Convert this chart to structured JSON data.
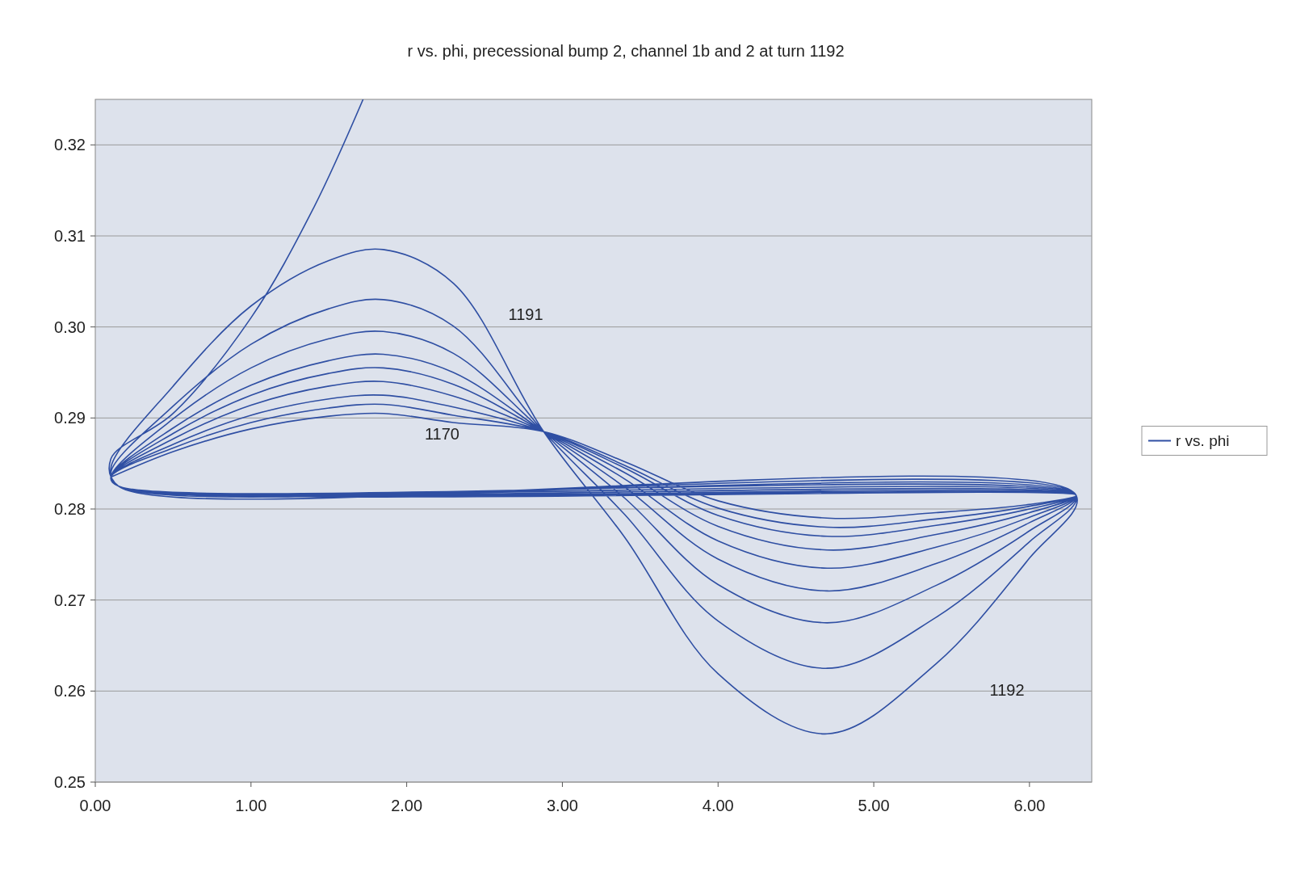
{
  "chart_data": {
    "type": "line",
    "title": "r vs. phi, precessional bump 2, channel 1b and 2 at turn 1192",
    "xlim": [
      0,
      6.4
    ],
    "xticks": [
      {
        "value": 0,
        "label": "0.00"
      },
      {
        "value": 1,
        "label": "1.00"
      },
      {
        "value": 2,
        "label": "2.00"
      },
      {
        "value": 3,
        "label": "3.00"
      },
      {
        "value": 4,
        "label": "4.00"
      },
      {
        "value": 5,
        "label": "5.00"
      },
      {
        "value": 6,
        "label": "6.00"
      }
    ],
    "ylim": [
      0.25,
      0.325
    ],
    "yticks": [
      {
        "value": 0.25,
        "label": "0.25"
      },
      {
        "value": 0.26,
        "label": "0.26"
      },
      {
        "value": 0.27,
        "label": "0.27"
      },
      {
        "value": 0.28,
        "label": "0.28"
      },
      {
        "value": 0.29,
        "label": "0.29"
      },
      {
        "value": 0.3,
        "label": "0.30"
      },
      {
        "value": 0.31,
        "label": "0.31"
      },
      {
        "value": 0.32,
        "label": "0.32"
      }
    ],
    "grid": "y",
    "legend": "right",
    "marker": "none",
    "annotations": [
      "1191",
      "1170",
      "1192"
    ],
    "series": [
      {
        "name": "r vs. phi",
        "color": "#2f4fa3",
        "x": [
          0.1,
          0.5,
          1.0,
          1.5,
          1.85,
          2.3,
          2.88,
          3.4,
          4.0,
          4.7,
          5.4,
          6.0,
          6.3,
          0.15,
          0.1,
          0.5,
          1.0,
          1.5,
          1.85,
          2.3,
          2.88,
          3.4,
          4.0,
          4.7,
          5.4,
          6.0,
          6.3,
          0.15,
          0.1,
          0.5,
          1.0,
          1.5,
          1.85,
          2.3,
          2.88,
          3.4,
          4.0,
          4.7,
          5.4,
          6.0,
          6.3,
          0.15,
          0.1,
          0.5,
          1.0,
          1.5,
          1.85,
          2.3,
          2.88,
          3.4,
          4.0,
          4.7,
          5.4,
          6.0,
          6.3,
          0.15,
          0.1,
          0.5,
          1.0,
          1.5,
          1.85,
          2.3,
          2.88,
          3.4,
          4.0,
          4.7,
          5.4,
          6.0,
          6.3,
          0.15,
          0.1,
          0.5,
          1.0,
          1.5,
          1.85,
          2.3,
          2.88,
          3.4,
          4.0,
          4.7,
          5.4,
          6.0,
          6.3,
          0.15,
          0.1,
          0.5,
          1.0,
          1.5,
          1.85,
          2.3,
          2.88,
          3.4,
          4.0,
          4.7,
          5.4,
          6.0,
          6.3,
          0.15,
          0.1,
          0.5,
          1.0,
          1.5,
          1.85,
          2.3,
          2.88,
          3.4,
          4.0,
          4.7,
          5.4,
          6.0,
          6.3,
          0.15,
          0.1,
          0.5,
          1.0,
          1.5,
          1.85,
          2.3,
          2.88,
          3.4,
          4.0,
          4.7,
          5.4,
          6.0,
          6.3,
          0.15,
          0.1,
          0.5,
          1.0,
          1.4,
          1.72
        ],
        "values": [
          0.2835,
          0.2863,
          0.2888,
          0.2902,
          0.2905,
          0.2895,
          0.2885,
          0.2852,
          0.2809,
          0.279,
          0.2796,
          0.2805,
          0.2815,
          0.2825,
          0.2835,
          0.2867,
          0.2895,
          0.2911,
          0.2915,
          0.2903,
          0.2885,
          0.2848,
          0.2801,
          0.278,
          0.2789,
          0.2803,
          0.2815,
          0.2825,
          0.2835,
          0.2871,
          0.2903,
          0.2921,
          0.2925,
          0.2912,
          0.2885,
          0.2845,
          0.2793,
          0.277,
          0.2782,
          0.28,
          0.2815,
          0.2825,
          0.2835,
          0.2877,
          0.2914,
          0.2935,
          0.294,
          0.2924,
          0.2885,
          0.284,
          0.2781,
          0.2755,
          0.2772,
          0.2796,
          0.2815,
          0.2825,
          0.2835,
          0.2883,
          0.2925,
          0.2949,
          0.2955,
          0.2937,
          0.2885,
          0.2833,
          0.2765,
          0.2735,
          0.2758,
          0.2791,
          0.2815,
          0.2825,
          0.2835,
          0.2889,
          0.2936,
          0.2963,
          0.297,
          0.295,
          0.2885,
          0.2824,
          0.2745,
          0.271,
          0.274,
          0.2785,
          0.2815,
          0.2825,
          0.2835,
          0.2899,
          0.2955,
          0.2987,
          0.2995,
          0.2971,
          0.2885,
          0.2812,
          0.2717,
          0.2675,
          0.2716,
          0.2776,
          0.2815,
          0.2825,
          0.284,
          0.2913,
          0.2981,
          0.302,
          0.303,
          0.3001,
          0.2885,
          0.2794,
          0.2677,
          0.2625,
          0.2681,
          0.2764,
          0.2815,
          0.2825,
          0.2845,
          0.2935,
          0.3023,
          0.3073,
          0.3085,
          0.3048,
          0.2885,
          0.2769,
          0.2619,
          0.2553,
          0.263,
          0.2746,
          0.2815,
          0.2825,
          0.2855,
          0.2905,
          0.301,
          0.313,
          0.325
        ]
      }
    ]
  }
}
